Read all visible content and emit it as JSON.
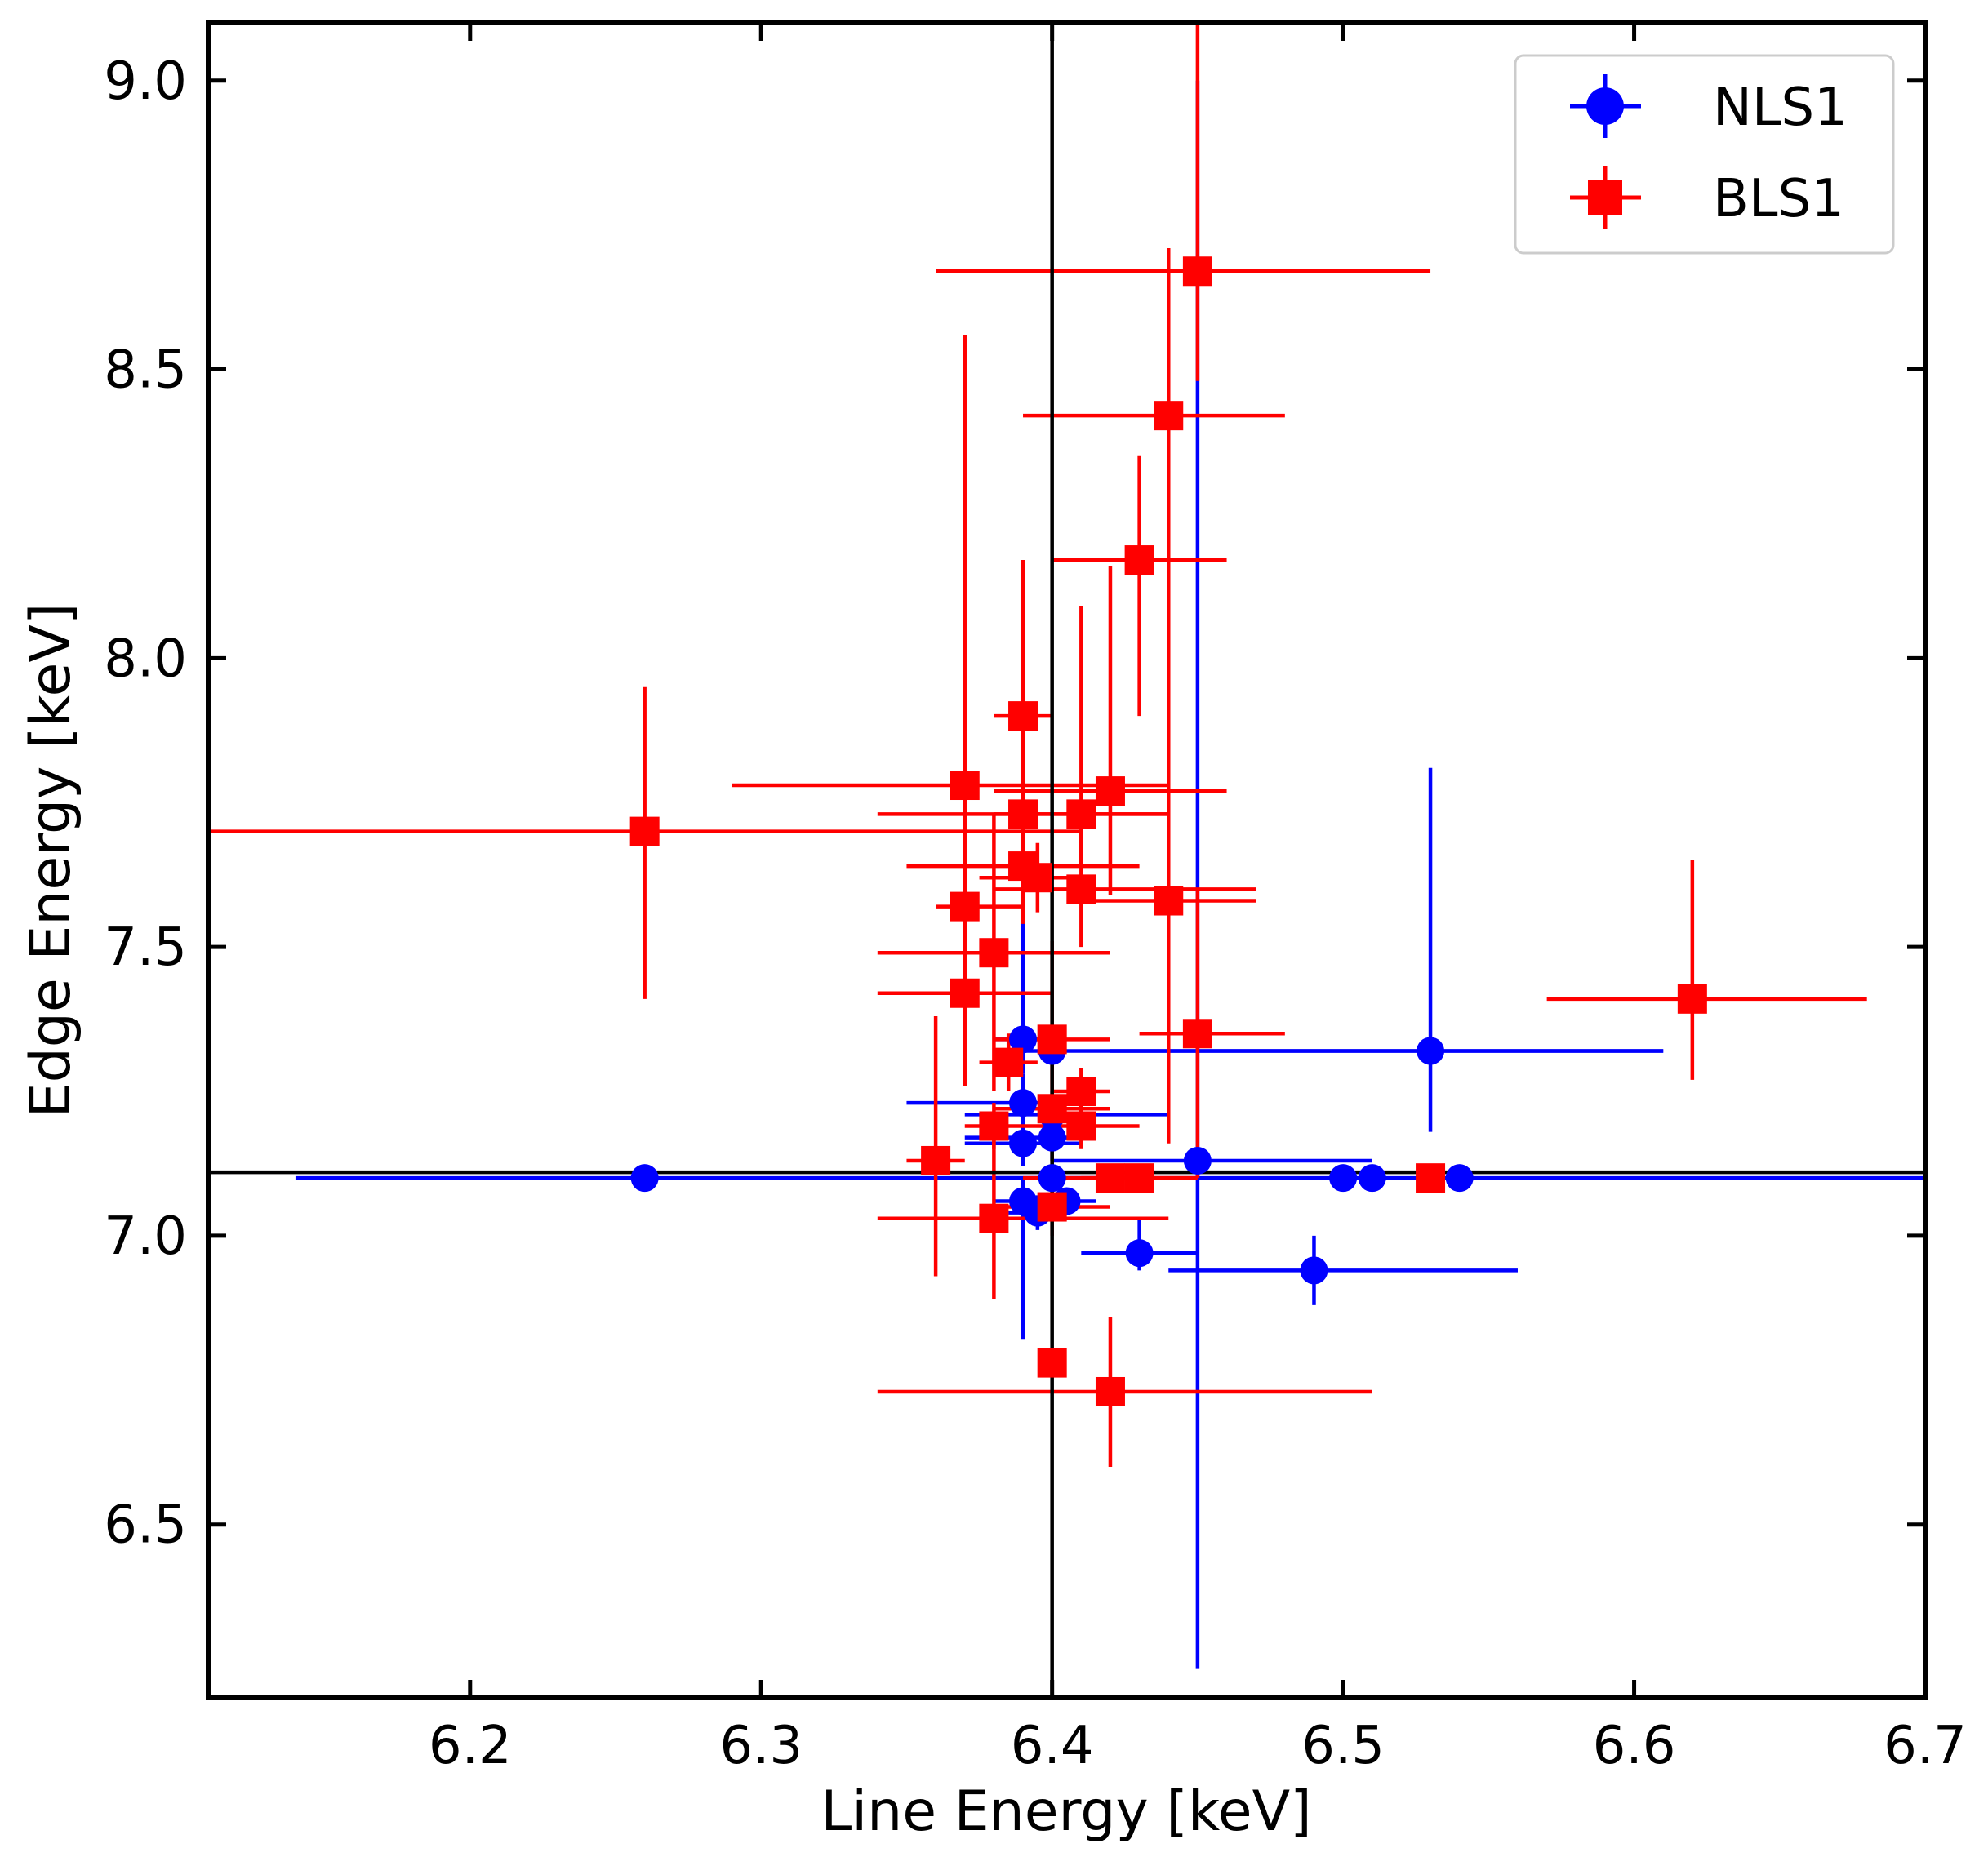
{
  "chart_data": {
    "type": "scatter",
    "title": "",
    "xlabel": "Line Energy [keV]",
    "ylabel": "Edge Energy [keV]",
    "xlim": [
      6.11,
      6.7
    ],
    "ylim": [
      6.2,
      9.1
    ],
    "xticks": [
      6.2,
      6.3,
      6.4,
      6.5,
      6.6,
      6.7
    ],
    "xtick_labels": [
      "6.2",
      "6.3",
      "6.4",
      "6.5",
      "6.6",
      "6.7"
    ],
    "yticks": [
      6.5,
      7.0,
      7.5,
      8.0,
      8.5,
      9.0
    ],
    "ytick_labels": [
      "6.5",
      "7.0",
      "7.5",
      "8.0",
      "8.5",
      "9.0"
    ],
    "reference_lines": {
      "x": 6.4,
      "y": 7.11
    },
    "legend_position": "top-right",
    "series": [
      {
        "name": "NLS1",
        "color": "#0000ff",
        "marker": "circle",
        "points": [
          {
            "x": 6.26,
            "y": 7.1,
            "xerr": [
              0.12,
              0.44
            ],
            "yerr": [
              0.0,
              0.0
            ]
          },
          {
            "x": 6.39,
            "y": 7.34,
            "xerr": [
              0.01,
              0.01
            ],
            "yerr": [
              0.06,
              0.48
            ]
          },
          {
            "x": 6.4,
            "y": 7.32,
            "xerr": [
              0.02,
              0.21
            ],
            "yerr": [
              0.02,
              0.02
            ]
          },
          {
            "x": 6.39,
            "y": 7.23,
            "xerr": [
              0.04,
              0.02
            ],
            "yerr": [
              0.05,
              0.05
            ]
          },
          {
            "x": 6.4,
            "y": 7.21,
            "xerr": [
              0.03,
              0.04
            ],
            "yerr": [
              0.04,
              0.04
            ]
          },
          {
            "x": 6.4,
            "y": 7.17,
            "xerr": [
              0.03,
              0.01
            ],
            "yerr": [
              0.04,
              0.04
            ]
          },
          {
            "x": 6.39,
            "y": 7.16,
            "xerr": [
              0.02,
              0.02
            ],
            "yerr": [
              0.04,
              0.05
            ]
          },
          {
            "x": 6.45,
            "y": 7.13,
            "xerr": [
              0.05,
              0.06
            ],
            "yerr": [
              0.88,
              1.87
            ]
          },
          {
            "x": 6.4,
            "y": 7.1,
            "xerr": [
              0.02,
              0.02
            ],
            "yerr": [
              0.05,
              0.05
            ]
          },
          {
            "x": 6.39,
            "y": 7.06,
            "xerr": [
              0.01,
              0.01
            ],
            "yerr": [
              0.24,
              0.04
            ]
          },
          {
            "x": 6.395,
            "y": 7.04,
            "xerr": [
              0.01,
              0.01
            ],
            "yerr": [
              0.03,
              0.03
            ]
          },
          {
            "x": 6.405,
            "y": 7.06,
            "xerr": [
              0.01,
              0.01
            ],
            "yerr": [
              0.02,
              0.02
            ]
          },
          {
            "x": 6.43,
            "y": 6.97,
            "xerr": [
              0.02,
              0.02
            ],
            "yerr": [
              0.03,
              0.06
            ]
          },
          {
            "x": 6.49,
            "y": 6.94,
            "xerr": [
              0.05,
              0.07
            ],
            "yerr": [
              0.06,
              0.06
            ]
          },
          {
            "x": 6.5,
            "y": 7.1,
            "xerr": [
              0.0,
              0.0
            ],
            "yerr": [
              0.0,
              0.0
            ]
          },
          {
            "x": 6.51,
            "y": 7.1,
            "xerr": [
              0.0,
              0.0
            ],
            "yerr": [
              0.0,
              0.0
            ]
          },
          {
            "x": 6.53,
            "y": 7.32,
            "xerr": [
              0.11,
              0.08
            ],
            "yerr": [
              0.14,
              0.49
            ]
          },
          {
            "x": 6.54,
            "y": 7.1,
            "xerr": [
              0.0,
              0.0
            ],
            "yerr": [
              0.0,
              0.0
            ]
          }
        ]
      },
      {
        "name": "BLS1",
        "color": "#ff0000",
        "marker": "square",
        "points": [
          {
            "x": 6.26,
            "y": 7.7,
            "xerr": [
              0.15,
              0.15
            ],
            "yerr": [
              0.29,
              0.25
            ]
          },
          {
            "x": 6.37,
            "y": 7.78,
            "xerr": [
              0.08,
              0.07
            ],
            "yerr": [
              0.17,
              0.78
            ]
          },
          {
            "x": 6.39,
            "y": 7.9,
            "xerr": [
              0.01,
              0.01
            ],
            "yerr": [
              0.12,
              0.1
            ]
          },
          {
            "x": 6.39,
            "y": 7.73,
            "xerr": [
              0.05,
              0.05
            ],
            "yerr": [
              0.1,
              0.44
            ]
          },
          {
            "x": 6.39,
            "y": 7.64,
            "xerr": [
              0.04,
              0.04
            ],
            "yerr": [
              0.1,
              0.2
            ]
          },
          {
            "x": 6.395,
            "y": 7.62,
            "xerr": [
              0.02,
              0.02
            ],
            "yerr": [
              0.06,
              0.06
            ]
          },
          {
            "x": 6.41,
            "y": 7.73,
            "xerr": [
              0.03,
              0.03
            ],
            "yerr": [
              0.09,
              0.36
            ]
          },
          {
            "x": 6.42,
            "y": 7.77,
            "xerr": [
              0.04,
              0.04
            ],
            "yerr": [
              0.18,
              0.39
            ]
          },
          {
            "x": 6.41,
            "y": 7.6,
            "xerr": [
              0.03,
              0.06
            ],
            "yerr": [
              0.1,
              0.1
            ]
          },
          {
            "x": 6.37,
            "y": 7.57,
            "xerr": [
              0.01,
              0.02
            ],
            "yerr": [
              0.06,
              0.06
            ]
          },
          {
            "x": 6.44,
            "y": 7.58,
            "xerr": [
              0.03,
              0.03
            ],
            "yerr": [
              0.42,
              0.42
            ]
          },
          {
            "x": 6.38,
            "y": 7.49,
            "xerr": [
              0.04,
              0.04
            ],
            "yerr": [
              0.24,
              0.24
            ]
          },
          {
            "x": 6.37,
            "y": 7.42,
            "xerr": [
              0.03,
              0.03
            ],
            "yerr": [
              0.16,
              0.16
            ]
          },
          {
            "x": 6.45,
            "y": 8.67,
            "xerr": [
              0.09,
              0.08
            ],
            "yerr": [
              0.19,
              0.5
            ]
          },
          {
            "x": 6.44,
            "y": 8.42,
            "xerr": [
              0.05,
              0.04
            ],
            "yerr": [
              0.54,
              0.29
            ]
          },
          {
            "x": 6.43,
            "y": 8.17,
            "xerr": [
              0.03,
              0.03
            ],
            "yerr": [
              0.27,
              0.18
            ]
          },
          {
            "x": 6.45,
            "y": 7.35,
            "xerr": [
              0.02,
              0.03
            ],
            "yerr": [
              0.25,
              0.25
            ]
          },
          {
            "x": 6.4,
            "y": 7.34,
            "xerr": [
              0.02,
              0.02
            ],
            "yerr": [
              0.17,
              0.17
            ]
          },
          {
            "x": 6.385,
            "y": 7.3,
            "xerr": [
              0.01,
              0.01
            ],
            "yerr": [
              0.05,
              0.05
            ]
          },
          {
            "x": 6.41,
            "y": 7.25,
            "xerr": [
              0.01,
              0.01
            ],
            "yerr": [
              0.04,
              0.04
            ]
          },
          {
            "x": 6.4,
            "y": 7.22,
            "xerr": [
              0.02,
              0.02
            ],
            "yerr": [
              0.09,
              0.09
            ]
          },
          {
            "x": 6.41,
            "y": 7.19,
            "xerr": [
              0.02,
              0.02
            ],
            "yerr": [
              0.04,
              0.04
            ]
          },
          {
            "x": 6.38,
            "y": 7.19,
            "xerr": [
              0.01,
              0.01
            ],
            "yerr": [
              0.04,
              0.04
            ]
          },
          {
            "x": 6.36,
            "y": 7.13,
            "xerr": [
              0.01,
              0.01
            ],
            "yerr": [
              0.2,
              0.25
            ]
          },
          {
            "x": 6.42,
            "y": 7.1,
            "xerr": [
              0.03,
              0.03
            ],
            "yerr": [
              0.0,
              0.0
            ]
          },
          {
            "x": 6.43,
            "y": 7.1,
            "xerr": [
              0.02,
              0.02
            ],
            "yerr": [
              0.0,
              0.0
            ]
          },
          {
            "x": 6.38,
            "y": 7.03,
            "xerr": [
              0.04,
              0.06
            ],
            "yerr": [
              0.14,
              0.14
            ]
          },
          {
            "x": 6.4,
            "y": 7.05,
            "xerr": [
              0.02,
              0.02
            ],
            "yerr": [
              0.05,
              0.05
            ]
          },
          {
            "x": 6.53,
            "y": 7.1,
            "xerr": [
              0.0,
              0.0
            ],
            "yerr": [
              0.0,
              0.0
            ]
          },
          {
            "x": 6.62,
            "y": 7.41,
            "xerr": [
              0.05,
              0.06
            ],
            "yerr": [
              0.14,
              0.24
            ]
          },
          {
            "x": 6.4,
            "y": 6.78,
            "xerr": [
              0.0,
              0.0
            ],
            "yerr": [
              0.0,
              0.0
            ]
          },
          {
            "x": 6.42,
            "y": 6.73,
            "xerr": [
              0.08,
              0.09
            ],
            "yerr": [
              0.13,
              0.13
            ]
          }
        ]
      }
    ]
  }
}
